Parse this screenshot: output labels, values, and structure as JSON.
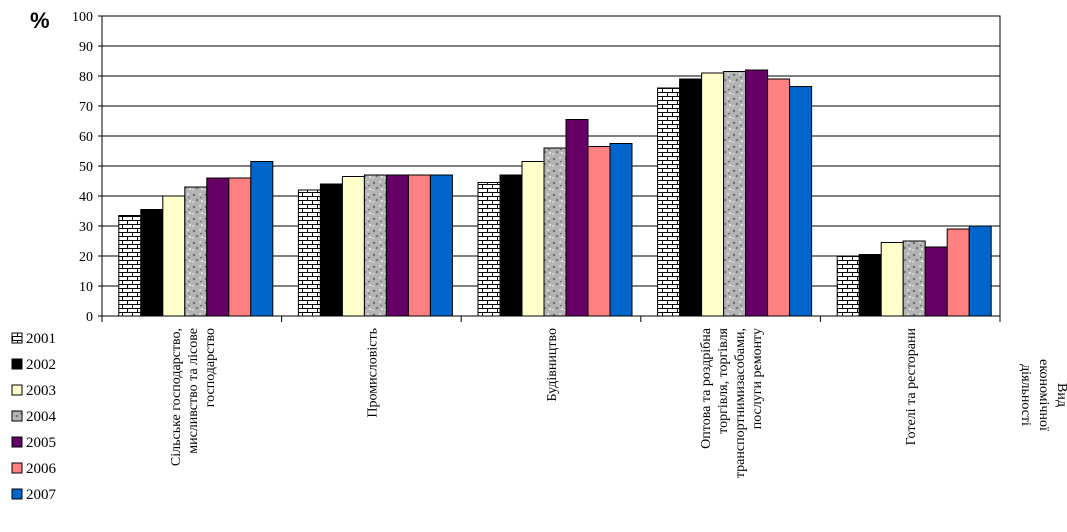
{
  "chart_data": {
    "type": "bar",
    "ylabel": "%",
    "xlabel": [
      "Вид",
      "економічної",
      "діяльності"
    ],
    "ylim": [
      0,
      100
    ],
    "yticks": [
      0,
      10,
      20,
      30,
      40,
      50,
      60,
      70,
      80,
      90,
      100
    ],
    "grid": true,
    "legend_position": "left",
    "categories": [
      [
        "Сільське  господарство,",
        "мисливство та лісове",
        "господарство"
      ],
      [
        "Промисловість"
      ],
      [
        "Будівництво"
      ],
      [
        "Оптова та роздрібна",
        "торгівля, торгівля",
        "транспортнимизасобами,",
        "послуги ремонту"
      ],
      [
        "Готелі та ресторани"
      ]
    ],
    "series": [
      {
        "name": "2001",
        "pattern": "brick",
        "color": "#ffffff",
        "values": [
          33.5,
          42,
          44.5,
          76,
          20
        ]
      },
      {
        "name": "2002",
        "pattern": "solid",
        "color": "#000000",
        "values": [
          35.5,
          44,
          47,
          79,
          20.5
        ]
      },
      {
        "name": "2003",
        "pattern": "solid",
        "color": "#ffffcc",
        "values": [
          40,
          46.5,
          51.5,
          81,
          24.5
        ]
      },
      {
        "name": "2004",
        "pattern": "granite",
        "color": "#a8a8a8",
        "values": [
          43,
          47,
          56,
          81.5,
          25
        ]
      },
      {
        "name": "2005",
        "pattern": "solid",
        "color": "#660066",
        "values": [
          46,
          47,
          65.5,
          82,
          23
        ]
      },
      {
        "name": "2006",
        "pattern": "solid",
        "color": "#ff8080",
        "values": [
          46,
          47,
          56.5,
          79,
          29
        ]
      },
      {
        "name": "2007",
        "pattern": "solid",
        "color": "#0066cc",
        "values": [
          51.5,
          47,
          57.5,
          76.5,
          30
        ]
      }
    ]
  }
}
